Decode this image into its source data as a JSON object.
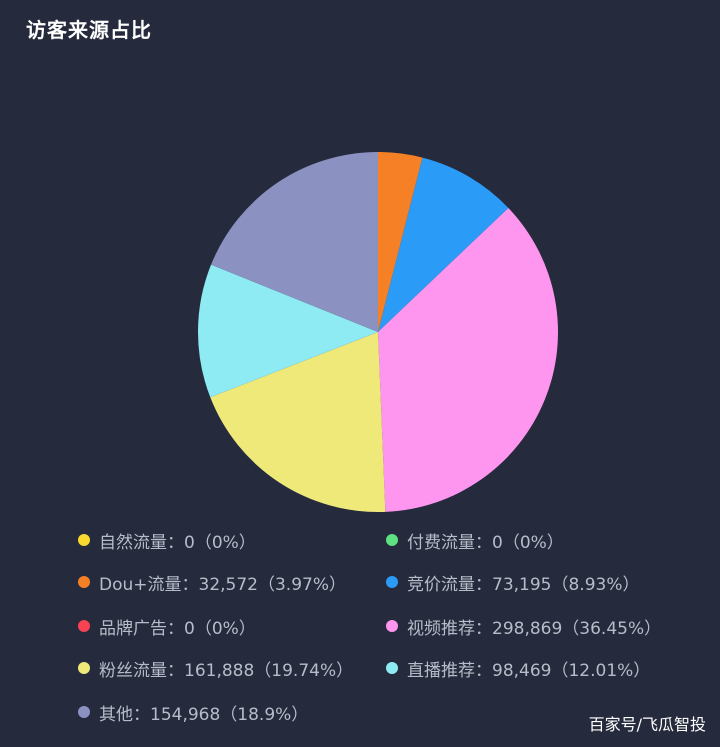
{
  "chart_data": {
    "type": "pie",
    "title": "访客来源占比",
    "slices": [
      {
        "name": "自然流量",
        "value": 0,
        "label": "自然流量：0（0%）",
        "color": "#f9d82f"
      },
      {
        "name": "付费流量",
        "value": 0,
        "label": "付费流量：0（0%）",
        "color": "#5fe081"
      },
      {
        "name": "Dou+流量",
        "value": 32572,
        "label": "Dou+流量：32,572（3.97%）",
        "color": "#f58025"
      },
      {
        "name": "竞价流量",
        "value": 73195,
        "label": "竞价流量：73,195（8.93%）",
        "color": "#2b9bf8"
      },
      {
        "name": "品牌广告",
        "value": 0,
        "label": "品牌广告：0（0%）",
        "color": "#f64252"
      },
      {
        "name": "视频推荐",
        "value": 298869,
        "label": "视频推荐：298,869（36.45%）",
        "color": "#fe96f0"
      },
      {
        "name": "粉丝流量",
        "value": 161888,
        "label": "粉丝流量：161,888（19.74%）",
        "color": "#efe97a"
      },
      {
        "name": "直播推荐",
        "value": 98469,
        "label": "直播推荐：98,469（12.01%）",
        "color": "#8eeaf3"
      },
      {
        "name": "其他",
        "value": 154968,
        "label": "其他：154,968（18.9%）",
        "color": "#8b91c0"
      }
    ],
    "legend_position": "bottom"
  },
  "watermark": "百家号/飞瓜智投"
}
